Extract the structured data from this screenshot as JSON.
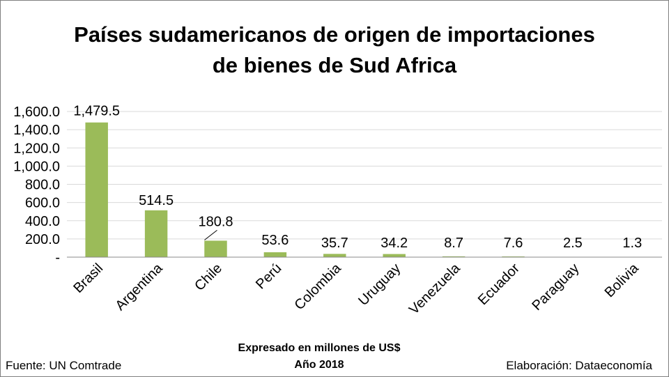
{
  "title_line1": "Países sudamericanos de origen de importaciones",
  "title_line2": "de bienes de Sud Africa",
  "footer": {
    "source": "Fuente: UN Comtrade",
    "unit_note": "Expresado en millones de US$",
    "year": "Año 2018",
    "credit": "Elaboración: Dataeconomía"
  },
  "colors": {
    "bar": "#9bbb59",
    "grid": "#d9d9d9",
    "axis": "#898989"
  },
  "chart_data": {
    "type": "bar",
    "title": "Países sudamericanos de origen de importaciones de bienes de Sud Africa",
    "categories": [
      "Brasil",
      "Argentina",
      "Chile",
      "Perú",
      "Colombia",
      "Uruguay",
      "Venezuela",
      "Ecuador",
      "Paraguay",
      "Bolivia"
    ],
    "values": [
      1479.5,
      514.5,
      180.8,
      53.6,
      35.7,
      34.2,
      8.7,
      7.6,
      2.5,
      1.3
    ],
    "data_labels": [
      "1,479.5",
      "514.5",
      "180.8",
      "53.6",
      "35.7",
      "34.2",
      "8.7",
      "7.6",
      "2.5",
      "1.3"
    ],
    "y_ticks": [
      0,
      200,
      400,
      600,
      800,
      1000,
      1200,
      1400,
      1600
    ],
    "y_tick_labels": [
      "-",
      "200.0",
      "400.0",
      "600.0",
      "800.0",
      "1,000.0",
      "1,200.0",
      "1,400.0",
      "1,600.0"
    ],
    "ylim": [
      0,
      1600
    ],
    "grid": true,
    "legend": "none"
  }
}
